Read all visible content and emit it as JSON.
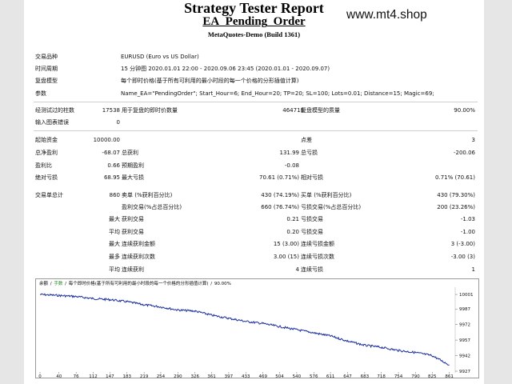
{
  "header": {
    "title": "Strategy Tester Report",
    "subtitle": "EA_Pending_Order",
    "build": "MetaQuotes-Demo (Build 1361)",
    "watermark": "www.mt4.shop"
  },
  "info": [
    {
      "label": "交易品种",
      "value": "EURUSD (Euro vs US Dollar)"
    },
    {
      "label": "时间周期",
      "value": "15 分钟图 2020.01.01 22:00 - 2020.09.06 23:45 (2020.01.01 - 2020.09.07)"
    },
    {
      "label": "复盘模型",
      "value": "每个即时价格(基于所有可利用的最小时段的每一个价格的分形插值计算)"
    },
    {
      "label": "参数",
      "value": "Name_EA=\"PendingOrder\"; Start_Hour=6; End_Hour=20; TP=20; SL=100; Lots=0.01; Distance=15; Magic=69;"
    }
  ],
  "bars": {
    "label": "经测试过的柱数",
    "value": "17538",
    "ticks_label": "用于复盘的即时价数量",
    "ticks_value": "464718",
    "quality_label": "复盘模型的质量",
    "quality_value": "90.00%",
    "errors_label": "输入图表错误",
    "errors_value": "0"
  },
  "stats": {
    "initial_deposit": {
      "label": "起始资金",
      "value": "10000.00"
    },
    "spread": {
      "label": "点差",
      "value": "3"
    },
    "net_profit": {
      "label": "总净盈利",
      "value": "-68.07"
    },
    "gross_profit": {
      "label": "总获利",
      "value": "131.99"
    },
    "gross_loss": {
      "label": "总亏损",
      "value": "-200.06"
    },
    "profit_factor": {
      "label": "盈利比",
      "value": "0.66"
    },
    "expected_payoff": {
      "label": "预期盈利",
      "value": "-0.08"
    },
    "abs_drawdown": {
      "label": "绝对亏损",
      "value": "68.95"
    },
    "max_drawdown": {
      "label": "最大亏损",
      "value": "70.61 (0.71%)"
    },
    "rel_drawdown": {
      "label": "相对亏损",
      "value": "0.71% (70.61)"
    },
    "total_trades": {
      "label": "交易单总计",
      "value": "860"
    },
    "short_positions": {
      "label": "卖单 (%获利百分比)",
      "value": "430 (74.19%)"
    },
    "long_positions": {
      "label": "买单 (%获利百分比)",
      "value": "430 (79.30%)"
    },
    "profit_trades": {
      "label": "盈利交易(%占总百分比)",
      "value": "660 (76.74%)"
    },
    "loss_trades": {
      "label": "亏损交易(%占总百分比)",
      "value": "200 (23.26%)"
    },
    "largest_label": "最大",
    "average_label": "平均",
    "maximum_label": "最大",
    "maximal_label": "最多",
    "largest_profit": {
      "label": "获利交易",
      "value": "0.21"
    },
    "largest_loss": {
      "label": "亏损交易",
      "value": "-1.03"
    },
    "average_profit": {
      "label": "获利交易",
      "value": "0.20"
    },
    "average_loss": {
      "label": "亏损交易",
      "value": "-1.00"
    },
    "max_consec_wins": {
      "label": "连续获利金额",
      "value": "15 (3.00)"
    },
    "max_consec_losses": {
      "label": "连续亏损金额",
      "value": "3 (-3.00)"
    },
    "maximal_consec_profit": {
      "label": "连续获利次数",
      "value": "3.00 (15)"
    },
    "maximal_consec_loss": {
      "label": "连续亏损次数",
      "value": "-3.00 (3)"
    },
    "avg_consec_wins": {
      "label": "连续获利",
      "value": "4"
    },
    "avg_consec_losses": {
      "label": "连续亏损",
      "value": "1"
    }
  },
  "chart_data": {
    "type": "line",
    "caption_parts": [
      "余额",
      "/",
      "手数",
      "/",
      "每个即时价格(基于所有可利用的最小时段的每一个价格的分形插值计算)",
      "/",
      "90.00%"
    ],
    "x_ticks": [
      "0",
      "40",
      "76",
      "112",
      "147",
      "183",
      "219",
      "254",
      "290",
      "326",
      "361",
      "397",
      "433",
      "469",
      "504",
      "540",
      "576",
      "611",
      "647",
      "683",
      "718",
      "754",
      "790",
      "825",
      "861"
    ],
    "y_ticks": [
      "10001",
      "9987",
      "9972",
      "9957",
      "9942",
      "9927"
    ],
    "xlim": [
      0,
      870
    ],
    "ylim": [
      9927,
      10008
    ],
    "line_color": "#1a2d9c",
    "x": [
      0,
      40,
      76,
      112,
      147,
      183,
      219,
      254,
      290,
      326,
      361,
      397,
      433,
      469,
      504,
      540,
      576,
      611,
      647,
      683,
      718,
      754,
      790,
      825,
      861
    ],
    "y": [
      10001,
      10000,
      9999,
      9997,
      9996,
      9994,
      9991,
      9989,
      9986,
      9985,
      9981,
      9978,
      9975,
      9973,
      9970,
      9967,
      9964,
      9961,
      9956,
      9952,
      9950,
      9947,
      9945,
      9942,
      9933
    ]
  }
}
